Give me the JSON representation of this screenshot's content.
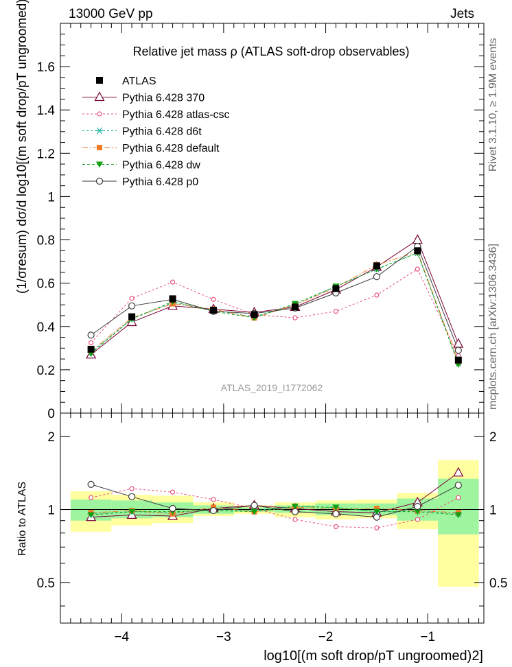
{
  "header": {
    "left": "13000 GeV pp",
    "right": "Jets",
    "side_top": "Rivet 3.1.10, ≥ 1.9M events",
    "side_bottom": "mcplots.cern.ch [arXiv:1306.3436]",
    "watermark": "ATLAS_2019_I1772062"
  },
  "chart_data": [
    {
      "type": "line",
      "title": "Relative jet mass  ρ (ATLAS soft-drop observables)",
      "ylabel": "(1/σresum) dσ/d log10[(m soft drop/pT ungroomed)2]",
      "xlim": [
        -4.6,
        -0.45
      ],
      "ylim": [
        0,
        1.8
      ],
      "yticks": [
        0.2,
        0.4,
        0.6,
        0.8,
        1,
        1.2,
        1.4,
        1.6
      ],
      "ytick_labels": [
        "0.2",
        "0.4",
        "0.6",
        "0.8",
        "1",
        "1.2",
        "1.4",
        "1.6"
      ],
      "y0_label": "0",
      "x": [
        -4.3,
        -3.9,
        -3.5,
        -3.1,
        -2.7,
        -2.3,
        -1.9,
        -1.5,
        -1.1,
        -0.7
      ],
      "data": {
        "name": "ATLAS",
        "values": [
          0.295,
          0.445,
          0.528,
          0.475,
          0.455,
          0.49,
          0.575,
          0.68,
          0.75,
          0.245
        ]
      },
      "series": [
        {
          "name": "Pythia 6.428 370",
          "color": "#7a0033",
          "marker": "triangle-open",
          "dash": "solid",
          "values": [
            0.27,
            0.42,
            0.495,
            0.48,
            0.465,
            0.49,
            0.57,
            0.675,
            0.8,
            0.32
          ]
        },
        {
          "name": "Pythia 6.428 atlas-csc",
          "color": "#e8507a",
          "marker": "circle-open-small",
          "dash": "3,3",
          "values": [
            0.325,
            0.53,
            0.605,
            0.525,
            0.455,
            0.44,
            0.47,
            0.545,
            0.665,
            0.265
          ]
        },
        {
          "name": "Pythia 6.428 d6t",
          "color": "#19b3a1",
          "marker": "asterisk",
          "dash": "3,3",
          "values": [
            0.28,
            0.435,
            0.51,
            0.475,
            0.445,
            0.5,
            0.585,
            0.665,
            0.74,
            0.23
          ]
        },
        {
          "name": "Pythia 6.428 default",
          "color": "#f07a28",
          "marker": "square-filled-small",
          "dash": "8,3,2,3",
          "values": [
            0.285,
            0.44,
            0.505,
            0.48,
            0.44,
            0.5,
            0.58,
            0.685,
            0.745,
            0.235
          ]
        },
        {
          "name": "Pythia 6.428 dw",
          "color": "#11a011",
          "marker": "triangle-down-filled",
          "dash": "4,3",
          "values": [
            0.275,
            0.435,
            0.515,
            0.47,
            0.44,
            0.505,
            0.585,
            0.665,
            0.74,
            0.225
          ]
        },
        {
          "name": "Pythia 6.428 p0",
          "color": "#3a3a3a",
          "marker": "circle-open",
          "dash": "solid",
          "values": [
            0.36,
            0.495,
            0.525,
            0.47,
            0.46,
            0.485,
            0.555,
            0.63,
            0.77,
            0.29
          ]
        }
      ]
    },
    {
      "type": "line",
      "ylabel": "Ratio to ATLAS",
      "xlabel": "log10[(m soft drop/pT ungroomed)2]",
      "xlim": [
        -4.6,
        -0.45
      ],
      "xticks": [
        -4,
        -3,
        -2,
        -1
      ],
      "xtick_labels": [
        "−4",
        "−3",
        "−2",
        "−1"
      ],
      "ylim": [
        0.34,
        2.5
      ],
      "yticks": [
        0.5,
        1,
        2
      ],
      "ytick_labels": [
        "0.5",
        "1",
        "2"
      ],
      "bins": [
        [
          -4.5,
          -4.1
        ],
        [
          -4.1,
          -3.7
        ],
        [
          -3.7,
          -3.3
        ],
        [
          -3.3,
          -2.9
        ],
        [
          -2.9,
          -2.5
        ],
        [
          -2.5,
          -2.1
        ],
        [
          -2.1,
          -1.7
        ],
        [
          -1.7,
          -1.3
        ],
        [
          -1.3,
          -0.9
        ],
        [
          -0.9,
          -0.5
        ]
      ],
      "band_total": [
        [
          0.81,
          1.19
        ],
        [
          0.86,
          1.15
        ],
        [
          0.88,
          1.14
        ],
        [
          0.94,
          1.07
        ],
        [
          0.96,
          1.04
        ],
        [
          0.93,
          1.07
        ],
        [
          0.91,
          1.09
        ],
        [
          0.92,
          1.1
        ],
        [
          0.83,
          1.17
        ],
        [
          0.48,
          1.6
        ]
      ],
      "band_stat": [
        [
          0.9,
          1.1
        ],
        [
          0.92,
          1.09
        ],
        [
          0.93,
          1.07
        ],
        [
          0.96,
          1.04
        ],
        [
          0.98,
          1.02
        ],
        [
          0.97,
          1.04
        ],
        [
          0.95,
          1.06
        ],
        [
          0.95,
          1.06
        ],
        [
          0.9,
          1.11
        ],
        [
          0.79,
          1.34
        ]
      ],
      "ratios": [
        {
          "name": "Pythia 6.428 370",
          "values": [
            0.93,
            0.95,
            0.94,
            1.01,
            1.04,
            1.01,
            0.98,
            0.97,
            1.07,
            1.42
          ]
        },
        {
          "name": "Pythia 6.428 atlas-csc",
          "values": [
            1.12,
            1.22,
            1.18,
            1.1,
            1.01,
            0.91,
            0.85,
            0.84,
            0.91,
            1.12
          ]
        },
        {
          "name": "Pythia 6.428 d6t",
          "values": [
            0.96,
            0.98,
            0.97,
            1.0,
            0.99,
            1.03,
            1.02,
            0.98,
            0.99,
            0.96
          ]
        },
        {
          "name": "Pythia 6.428 default",
          "values": [
            0.97,
            0.99,
            0.96,
            1.02,
            0.98,
            1.02,
            1.01,
            1.01,
            0.99,
            0.97
          ]
        },
        {
          "name": "Pythia 6.428 dw",
          "values": [
            0.95,
            0.98,
            0.98,
            0.99,
            0.98,
            1.03,
            1.02,
            0.98,
            0.98,
            0.95
          ]
        },
        {
          "name": "Pythia 6.428 p0",
          "values": [
            1.27,
            1.13,
            1.01,
            0.99,
            1.04,
            0.98,
            0.96,
            0.93,
            1.03,
            1.26
          ]
        }
      ]
    }
  ]
}
